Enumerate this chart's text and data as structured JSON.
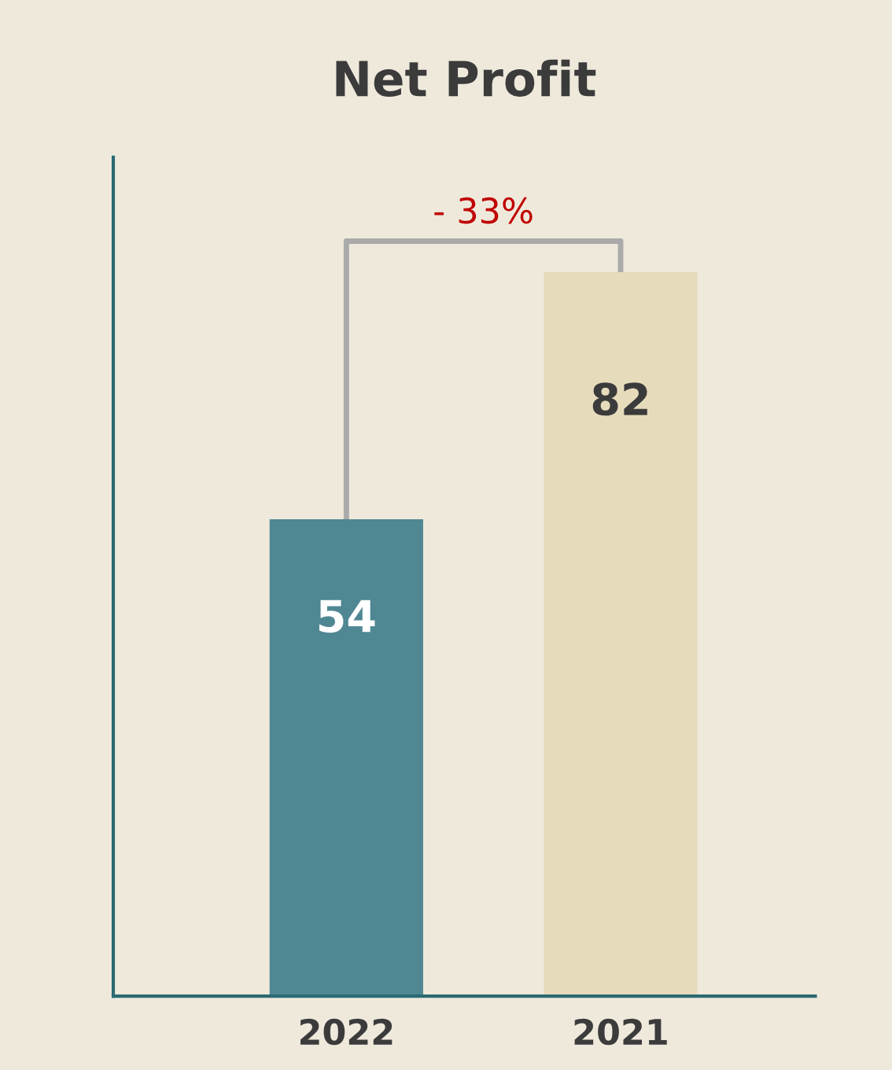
{
  "chart_data": {
    "type": "bar",
    "title": "Net Profit",
    "categories": [
      "2022",
      "2021"
    ],
    "values": [
      54,
      82
    ],
    "colors": [
      "#4f8792",
      "#e6dbbb"
    ],
    "ylim": [
      0,
      95
    ],
    "data_labels": true,
    "annotations": [
      "- 33%"
    ],
    "grid": false,
    "tick_labels": "x"
  }
}
